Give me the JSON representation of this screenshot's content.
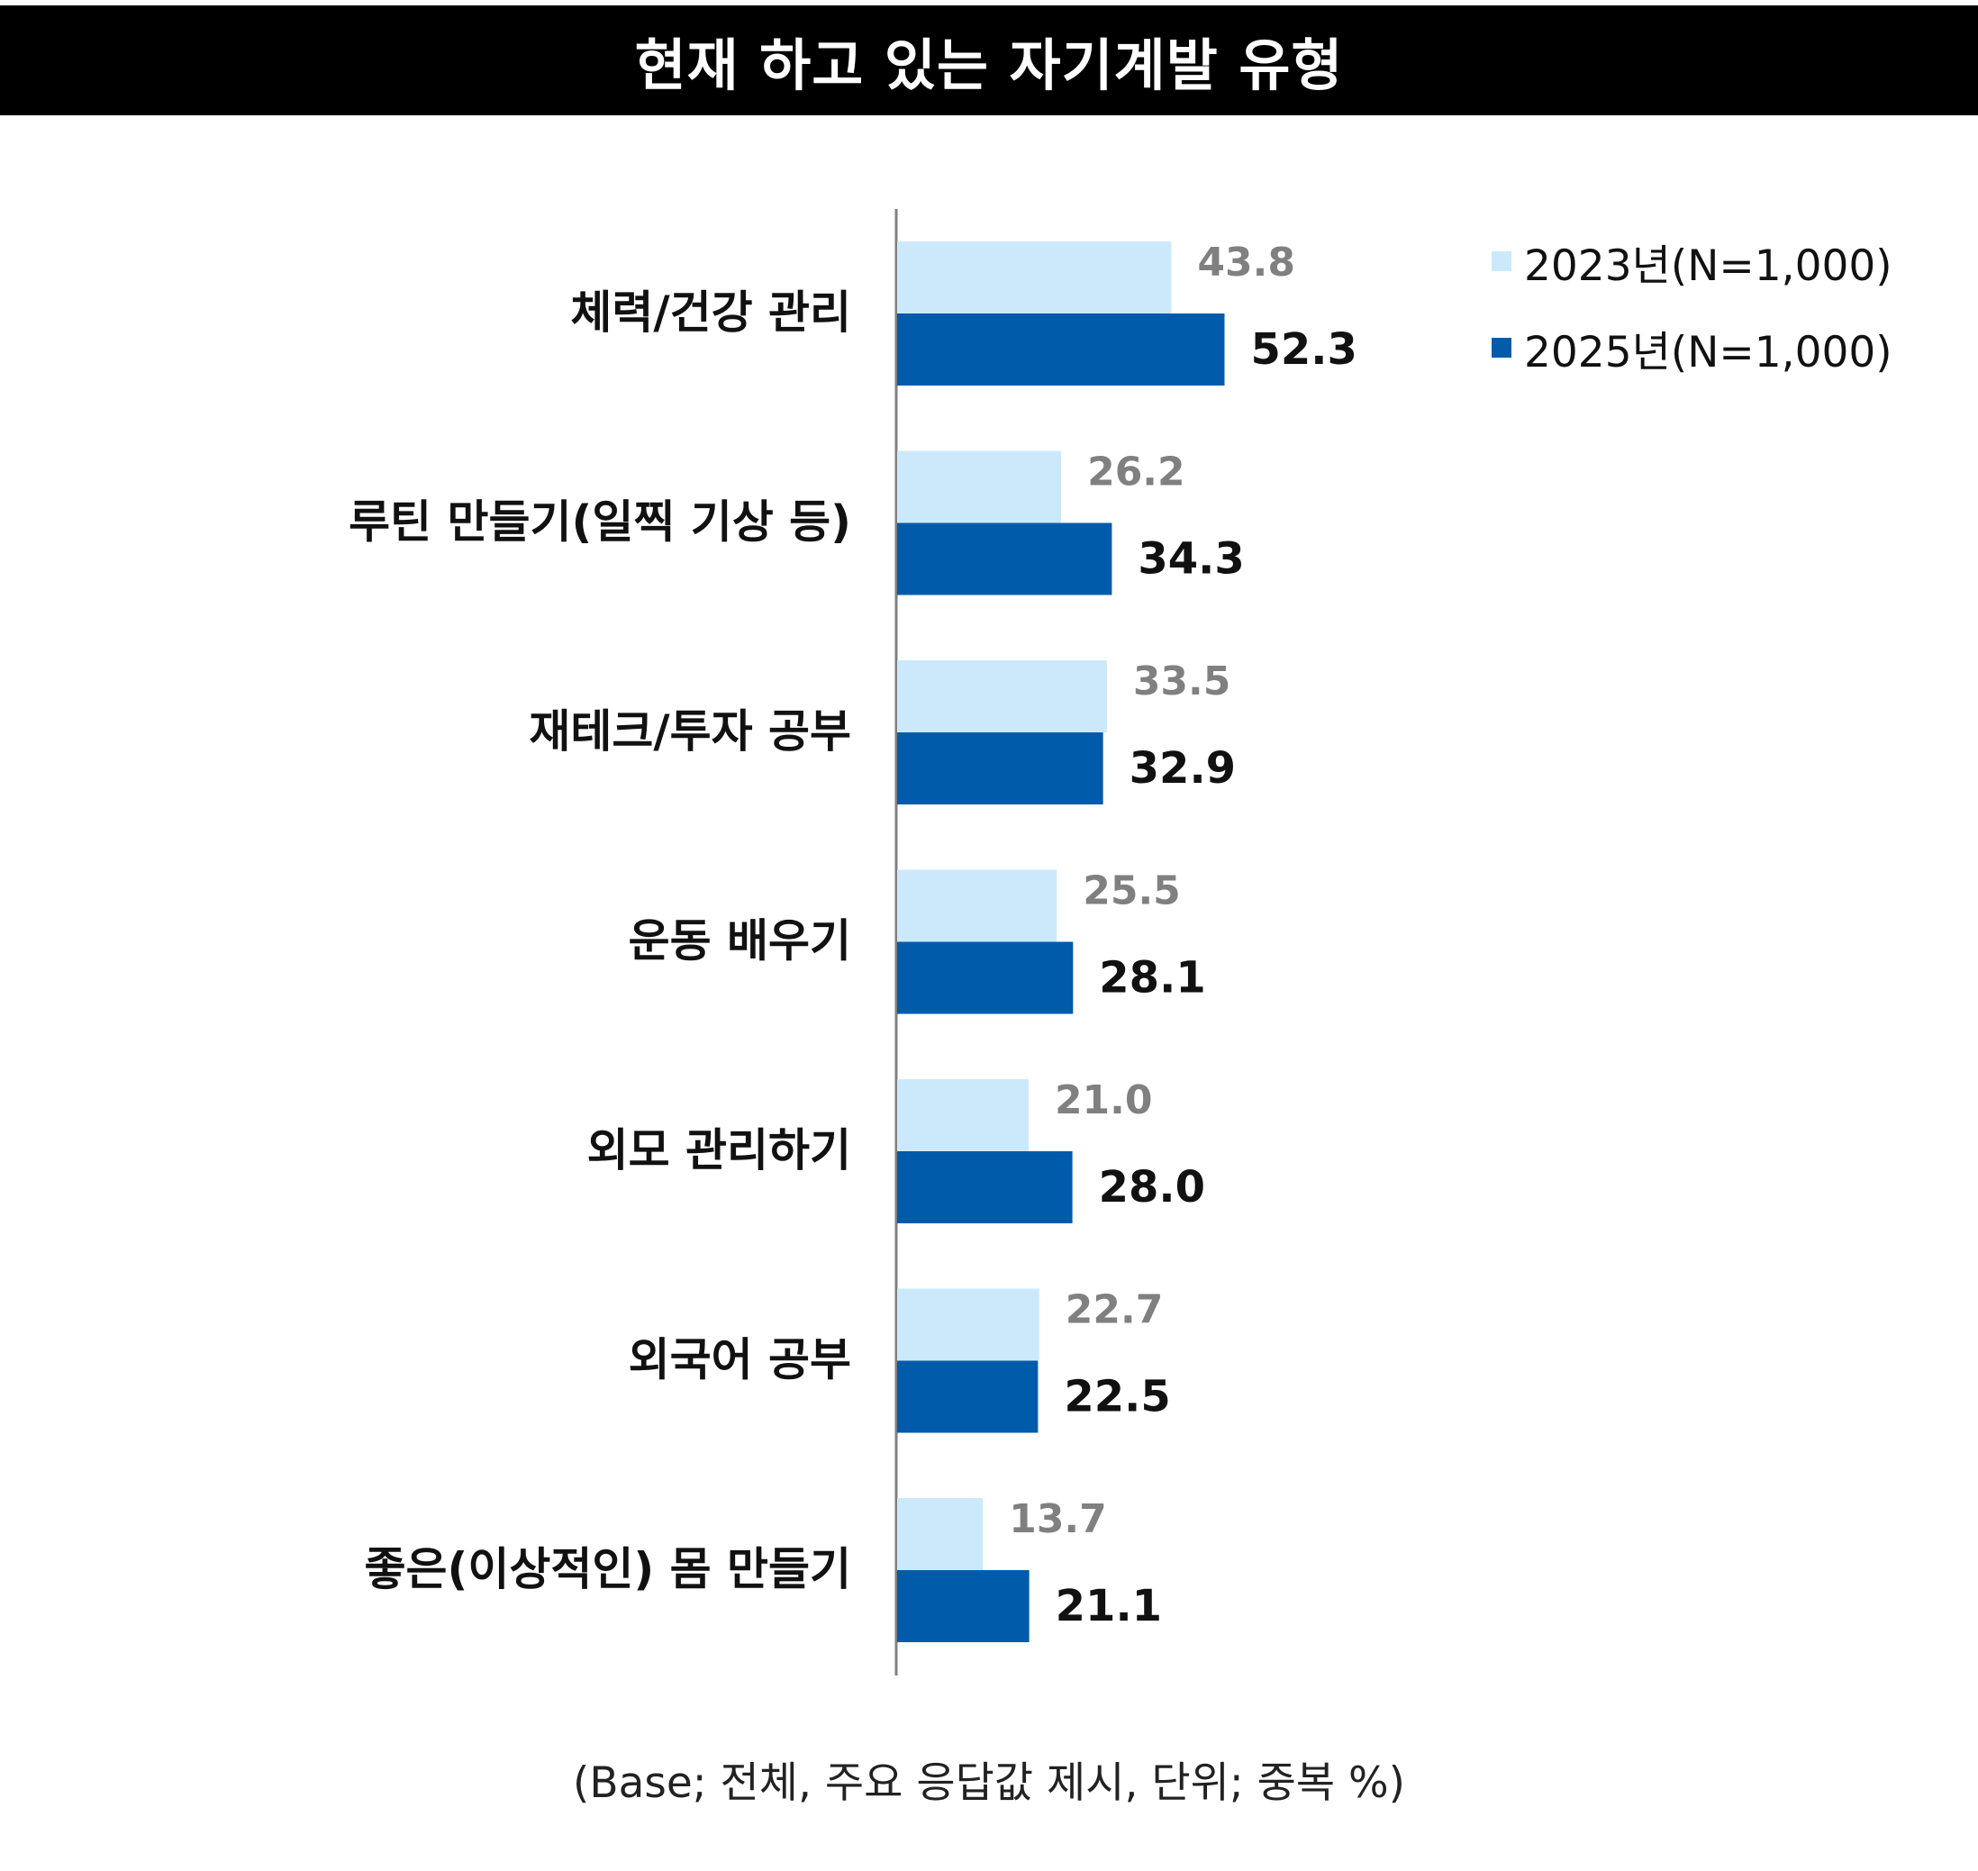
{
  "title": "현재 하고 있는 자기계발 유형",
  "footnote": "(Base; 전체, 주요 응답값 제시, 단위; 중복 %)",
  "colors": {
    "series_2023": "#cce9fb",
    "series_2025": "#005bab",
    "axis": "#808080"
  },
  "chart_data": {
    "type": "bar",
    "orientation": "horizontal",
    "categories": [
      "체력/건강 관리",
      "루틴 만들기(일찍 기상 등)",
      "재테크/투자 공부",
      "운동 배우기",
      "외모 관리하기",
      "외국어 공부",
      "좋은(이상적인) 몸 만들기"
    ],
    "series": [
      {
        "name": "2023년(N=1,000)",
        "values": [
          43.8,
          26.2,
          33.5,
          25.5,
          21.0,
          22.7,
          13.7
        ],
        "labels": [
          "43.8",
          "26.2",
          "33.5",
          "25.5",
          "21.0",
          "22.7",
          "13.7"
        ]
      },
      {
        "name": "2025년(N=1,000)",
        "values": [
          52.3,
          34.3,
          32.9,
          28.1,
          28.0,
          22.5,
          21.1
        ],
        "labels": [
          "52.3",
          "34.3",
          "32.9",
          "28.1",
          "28.0",
          "22.5",
          "21.1"
        ]
      }
    ],
    "legend_position": "top-right",
    "grid": false
  }
}
